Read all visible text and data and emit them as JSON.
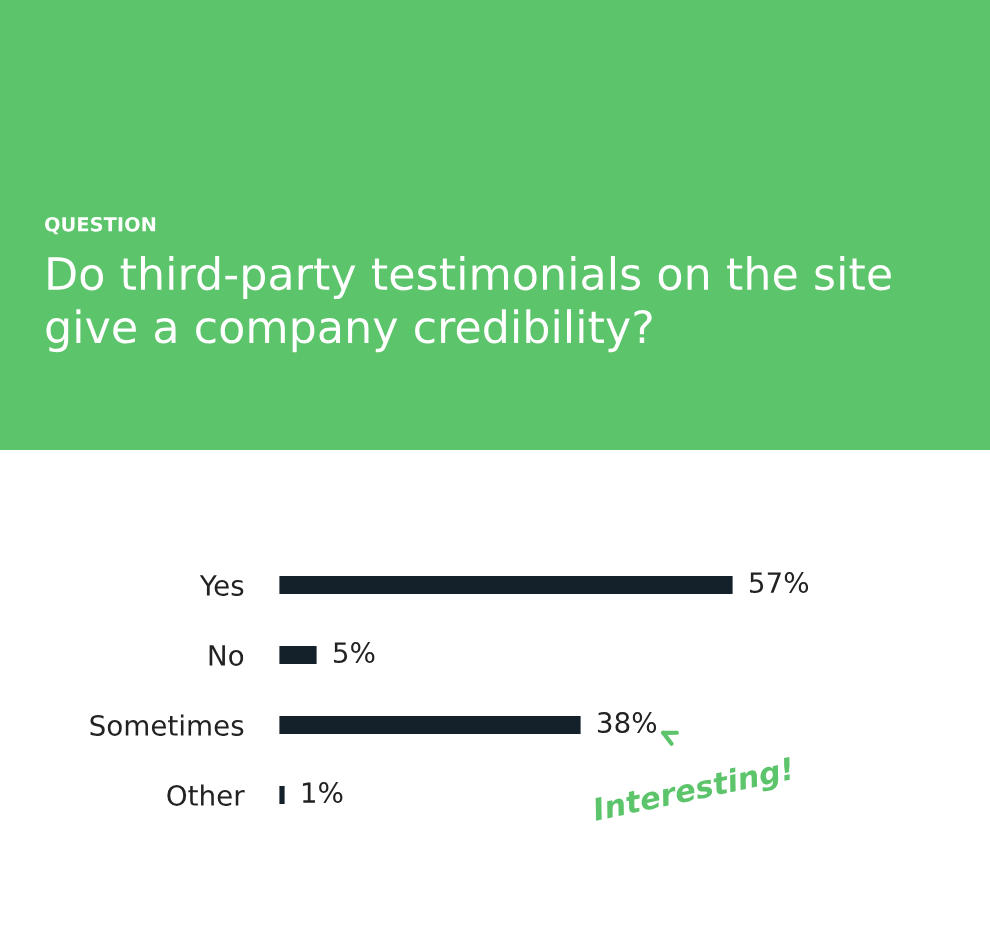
{
  "chart_data": {
    "type": "bar",
    "orientation": "horizontal",
    "subtitle": "QUESTION",
    "title": "Do third-party testimonials on the site give a company credibility?",
    "categories": [
      "Yes",
      "No",
      "Sometimes",
      "Other"
    ],
    "values": [
      57,
      5,
      38,
      1
    ],
    "value_labels": [
      "57%",
      "5%",
      "38%",
      "1%"
    ],
    "color": "#14212b",
    "annotations": [
      {
        "text": "Interesting!",
        "x": 38,
        "y": "Sometimes"
      }
    ],
    "grid": false,
    "legend": false
  }
}
